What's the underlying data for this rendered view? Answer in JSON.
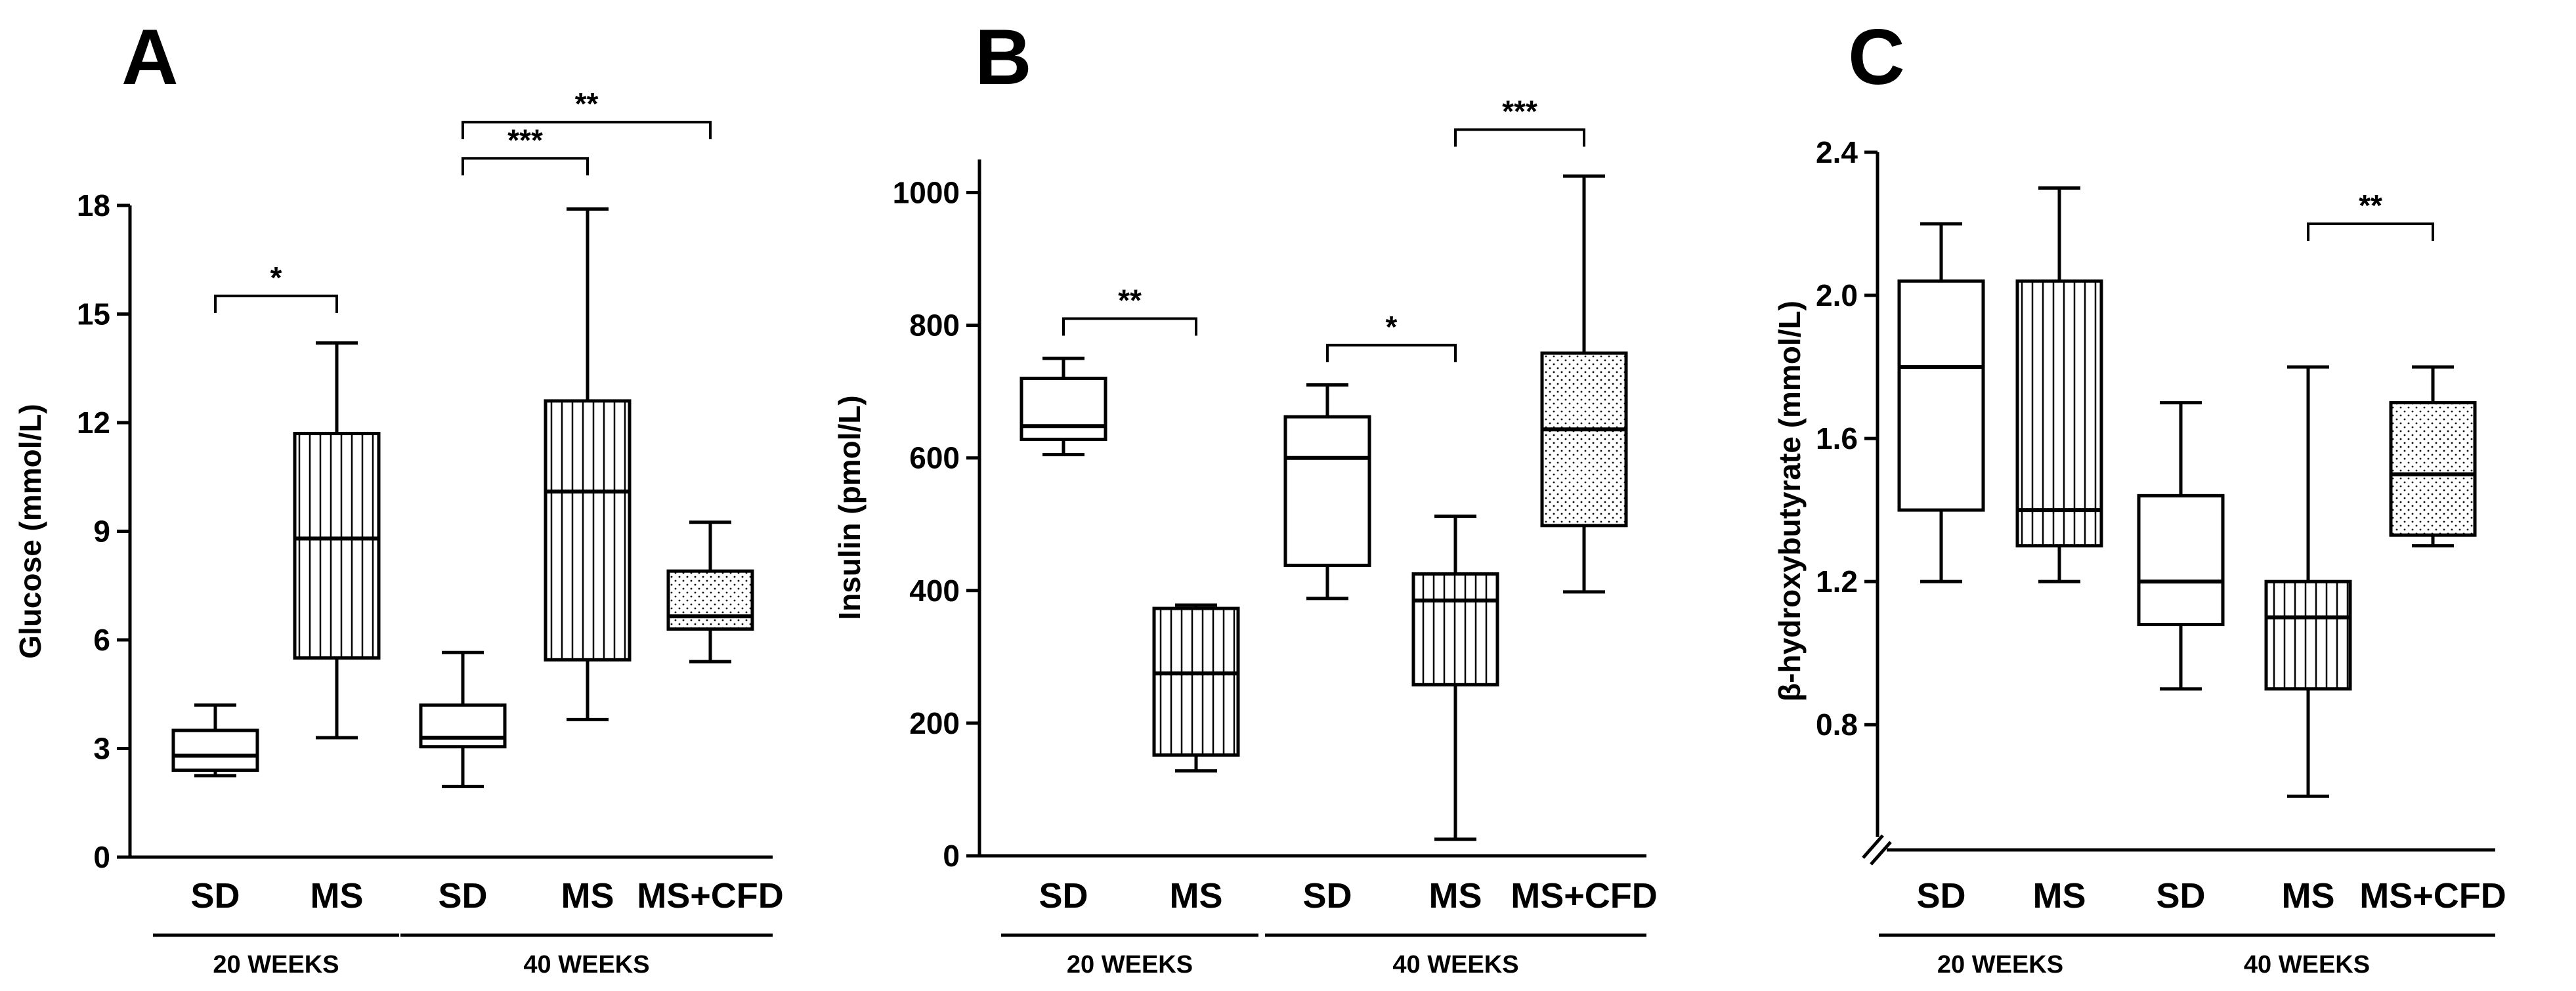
{
  "chart_data": [
    {
      "type": "boxplot",
      "panel_label": "A",
      "ylabel": "Glucose (mmol/L)",
      "ylim": [
        0,
        18
      ],
      "yticks": [
        0,
        3,
        6,
        9,
        12,
        15,
        18
      ],
      "categories": [
        "SD",
        "MS",
        "SD",
        "MS",
        "MS+CFD"
      ],
      "fills": [
        "plain",
        "vertical-lines",
        "plain",
        "vertical-lines",
        "dots"
      ],
      "groups": [
        {
          "label": "20 WEEKS",
          "from": 0,
          "to": 1
        },
        {
          "label": "40 WEEKS",
          "from": 2,
          "to": 4
        }
      ],
      "boxes": [
        {
          "min": 2.25,
          "q1": 2.4,
          "median": 2.8,
          "q3": 3.5,
          "max": 4.2
        },
        {
          "min": 3.3,
          "q1": 5.5,
          "median": 8.8,
          "q3": 11.7,
          "max": 14.2
        },
        {
          "min": 1.95,
          "q1": 3.05,
          "median": 3.3,
          "q3": 4.2,
          "max": 5.65
        },
        {
          "min": 3.8,
          "q1": 5.45,
          "median": 10.1,
          "q3": 12.6,
          "max": 17.9
        },
        {
          "min": 5.4,
          "q1": 6.3,
          "median": 6.65,
          "q3": 7.9,
          "max": 9.25
        }
      ],
      "significance": [
        {
          "from": 0,
          "to": 1,
          "label": "*",
          "y": 15.5
        },
        {
          "from": 2,
          "to": 3,
          "label": "***",
          "y": 19.3
        },
        {
          "from": 2,
          "to": 4,
          "label": "**",
          "y": 20.3
        }
      ]
    },
    {
      "type": "boxplot",
      "panel_label": "B",
      "ylabel": "Insulin (pmol/L)",
      "ylim": [
        0,
        1050
      ],
      "yticks": [
        0,
        200,
        400,
        600,
        800,
        1000
      ],
      "categories": [
        "SD",
        "MS",
        "SD",
        "MS",
        "MS+CFD"
      ],
      "fills": [
        "plain",
        "vertical-lines",
        "plain",
        "vertical-lines",
        "dots"
      ],
      "groups": [
        {
          "label": "20 WEEKS",
          "from": 0,
          "to": 1
        },
        {
          "label": "40 WEEKS",
          "from": 2,
          "to": 4
        }
      ],
      "boxes": [
        {
          "min": 605,
          "q1": 628,
          "median": 648,
          "q3": 720,
          "max": 750
        },
        {
          "min": 128,
          "q1": 152,
          "median": 275,
          "q3": 373,
          "max": 378
        },
        {
          "min": 388,
          "q1": 438,
          "median": 600,
          "q3": 662,
          "max": 710
        },
        {
          "min": 25,
          "q1": 258,
          "median": 385,
          "q3": 425,
          "max": 512
        },
        {
          "min": 398,
          "q1": 498,
          "median": 643,
          "q3": 758,
          "max": 1025
        }
      ],
      "significance": [
        {
          "from": 0,
          "to": 1,
          "label": "**",
          "y": 810
        },
        {
          "from": 2,
          "to": 3,
          "label": "*",
          "y": 770
        },
        {
          "from": 3,
          "to": 4,
          "label": "***",
          "y": 1095
        }
      ]
    },
    {
      "type": "boxplot",
      "panel_label": "C",
      "ylabel": "β-hydroxybutyrate (mmol/L)",
      "ylim": [
        0.45,
        2.4
      ],
      "yticks": [
        0.8,
        1.2,
        1.6,
        2.0,
        2.4
      ],
      "axis_break": true,
      "categories": [
        "SD",
        "MS",
        "SD",
        "MS",
        "MS+CFD"
      ],
      "fills": [
        "plain",
        "vertical-lines",
        "plain",
        "vertical-lines",
        "dots"
      ],
      "groups": [
        {
          "label": "20 WEEKS",
          "from": 0,
          "to": 1
        },
        {
          "label": "40 WEEKS",
          "from": 2,
          "to": 4
        }
      ],
      "boxes": [
        {
          "min": 1.2,
          "q1": 1.4,
          "median": 1.8,
          "q3": 2.04,
          "max": 2.2
        },
        {
          "min": 1.2,
          "q1": 1.3,
          "median": 1.4,
          "q3": 2.04,
          "max": 2.3
        },
        {
          "min": 0.9,
          "q1": 1.08,
          "median": 1.2,
          "q3": 1.44,
          "max": 1.7
        },
        {
          "min": 0.6,
          "q1": 0.9,
          "median": 1.1,
          "q3": 1.2,
          "max": 1.8
        },
        {
          "min": 1.3,
          "q1": 1.33,
          "median": 1.5,
          "q3": 1.7,
          "max": 1.8
        }
      ],
      "significance": [
        {
          "from": 3,
          "to": 4,
          "label": "**",
          "y": 2.2
        }
      ]
    }
  ]
}
